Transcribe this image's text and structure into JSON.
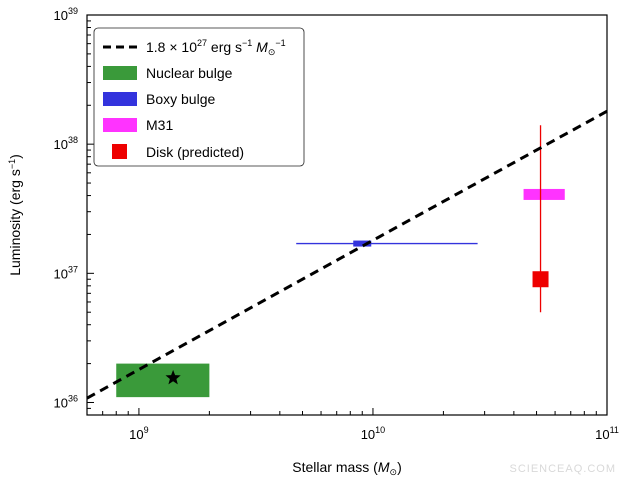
{
  "chart_data": {
    "type": "scatter",
    "xscale": "log",
    "yscale": "log",
    "xlim": [
      600000000,
      100000000000
    ],
    "ylim": [
      800000000000000000000000000000000000,
      1000000000000000000000000000000000000000
    ],
    "xlabel_parts": {
      "pre": "Stellar mass (",
      "sym": "M",
      "sub": "⊙",
      "post": ")"
    },
    "ylabel_parts": {
      "pre": "Luminosity (erg s",
      "sup": "−1",
      "post": ")"
    },
    "x_ticks": [
      {
        "value": 1000000000,
        "base": "10",
        "exp": "9"
      },
      {
        "value": 10000000000,
        "base": "10",
        "exp": "10"
      },
      {
        "value": 100000000000,
        "base": "10",
        "exp": "11"
      }
    ],
    "y_ticks": [
      {
        "value": 1000000000000000000000000000000000000,
        "base": "10",
        "exp": "36"
      },
      {
        "value": 10000000000000000000000000000000000000,
        "base": "10",
        "exp": "37"
      },
      {
        "value": 100000000000000000000000000000000000000,
        "base": "10",
        "exp": "38"
      },
      {
        "value": 1000000000000000000000000000000000000000,
        "base": "10",
        "exp": "39"
      }
    ],
    "relation": {
      "coefficient": 1.8e+27,
      "color": "#000000",
      "legend_parts": {
        "pre": "1.8 × 10",
        "sup": "27",
        "mid": " erg s",
        "sup2": "−1",
        "mid2": " M",
        "sub": "⊙",
        "sup3": "−1"
      }
    },
    "series": [
      {
        "name": "Nuclear bulge",
        "kind": "box",
        "color": "#3a9a3a",
        "x_range": [
          800000000,
          2000000000
        ],
        "y_range": [
          1100000000000000000000000000000000000,
          2000000000000000000000000000000000000
        ],
        "marker": {
          "shape": "star",
          "x": 1400000000,
          "y": 1550000000000000000000000000000000000,
          "color": "#000000"
        }
      },
      {
        "name": "Boxy bulge",
        "kind": "errorbar",
        "color": "#3333dd",
        "x": 9000000000,
        "y": 17000000000000000000000000000000000000,
        "x_err": [
          4700000000,
          28000000000
        ]
      },
      {
        "name": "M31",
        "kind": "box",
        "color": "#ff33ff",
        "x_range": [
          44000000000,
          66000000000
        ],
        "y_range": [
          37000000000000000000000000000000000000,
          45000000000000000000000000000000000000
        ]
      },
      {
        "name": "Disk (predicted)",
        "kind": "errorbar",
        "color": "#ee0000",
        "x": 52000000000,
        "y": 9000000000000000000000000000000000000,
        "y_err": [
          5000000000000000000000000000000000000,
          140000000000000000000000000000000000000
        ]
      }
    ],
    "legend": {
      "placement": "top-left"
    },
    "grid": false
  },
  "watermark": "SCIENCEAQ.COM"
}
